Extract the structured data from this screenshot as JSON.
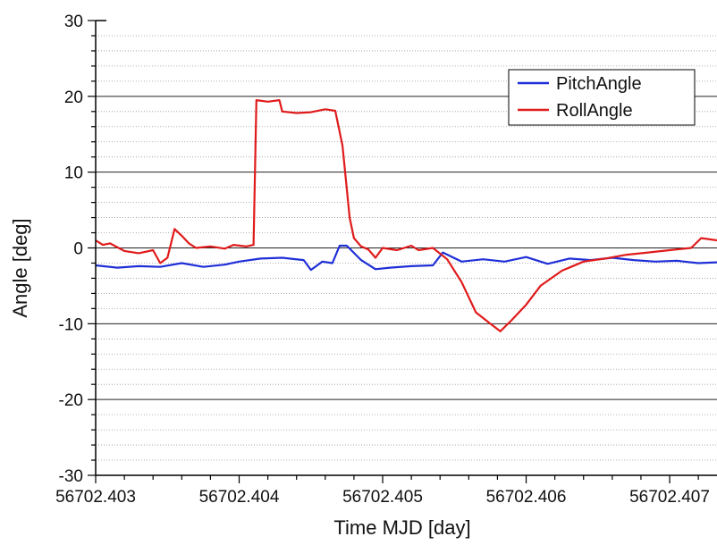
{
  "chart_data": {
    "type": "line",
    "xlabel": "Time MJD [day]",
    "ylabel": "Angle [deg]",
    "xlim": [
      56702.403,
      56702.40733
    ],
    "ylim": [
      -30,
      30
    ],
    "x_ticks": [
      56702.403,
      56702.404,
      56702.405,
      56702.406,
      56702.407
    ],
    "x_tick_labels": [
      "56702.403",
      "56702.404",
      "56702.405",
      "56702.406",
      "56702.407"
    ],
    "y_ticks": [
      -30,
      -20,
      -10,
      0,
      10,
      20,
      30
    ],
    "y_tick_labels": [
      "-30",
      "-20",
      "-10",
      "0",
      "10",
      "20",
      "30"
    ],
    "grid": {
      "major": true,
      "minor": true,
      "minor_step": 2
    },
    "legend": {
      "position": "top-right"
    },
    "series": [
      {
        "name": "PitchAngle",
        "color": "#1f2fd6",
        "points": [
          [
            56702.403,
            -2.3
          ],
          [
            56702.40315,
            -2.6
          ],
          [
            56702.4033,
            -2.4
          ],
          [
            56702.40345,
            -2.5
          ],
          [
            56702.4036,
            -2.0
          ],
          [
            56702.40375,
            -2.5
          ],
          [
            56702.4039,
            -2.2
          ],
          [
            56702.404,
            -1.8
          ],
          [
            56702.40415,
            -1.4
          ],
          [
            56702.4043,
            -1.3
          ],
          [
            56702.40445,
            -1.6
          ],
          [
            56702.4045,
            -2.9
          ],
          [
            56702.40458,
            -1.8
          ],
          [
            56702.40465,
            -2.0
          ],
          [
            56702.4047,
            0.3
          ],
          [
            56702.40475,
            0.3
          ],
          [
            56702.40485,
            -1.6
          ],
          [
            56702.40495,
            -2.8
          ],
          [
            56702.40505,
            -2.6
          ],
          [
            56702.4052,
            -2.4
          ],
          [
            56702.40535,
            -2.3
          ],
          [
            56702.40542,
            -0.6
          ],
          [
            56702.40555,
            -1.8
          ],
          [
            56702.4057,
            -1.5
          ],
          [
            56702.40585,
            -1.8
          ],
          [
            56702.406,
            -1.2
          ],
          [
            56702.40615,
            -2.1
          ],
          [
            56702.4063,
            -1.4
          ],
          [
            56702.40645,
            -1.6
          ],
          [
            56702.4066,
            -1.3
          ],
          [
            56702.40675,
            -1.6
          ],
          [
            56702.4069,
            -1.8
          ],
          [
            56702.40705,
            -1.7
          ],
          [
            56702.4072,
            -2.0
          ],
          [
            56702.40733,
            -1.9
          ]
        ]
      },
      {
        "name": "RollAngle",
        "color": "#e01b1b",
        "points": [
          [
            56702.403,
            1.0
          ],
          [
            56702.40305,
            0.4
          ],
          [
            56702.4031,
            0.6
          ],
          [
            56702.4032,
            -0.4
          ],
          [
            56702.4033,
            -0.7
          ],
          [
            56702.4034,
            -0.3
          ],
          [
            56702.40345,
            -2.0
          ],
          [
            56702.4035,
            -1.3
          ],
          [
            56702.40355,
            2.5
          ],
          [
            56702.4036,
            1.6
          ],
          [
            56702.40365,
            0.6
          ],
          [
            56702.4037,
            0.0
          ],
          [
            56702.4038,
            0.2
          ],
          [
            56702.4039,
            -0.1
          ],
          [
            56702.40396,
            0.4
          ],
          [
            56702.40405,
            0.2
          ],
          [
            56702.4041,
            0.4
          ],
          [
            56702.40412,
            19.5
          ],
          [
            56702.4042,
            19.3
          ],
          [
            56702.40428,
            19.5
          ],
          [
            56702.4043,
            18.0
          ],
          [
            56702.4044,
            17.8
          ],
          [
            56702.4045,
            17.9
          ],
          [
            56702.4046,
            18.3
          ],
          [
            56702.40467,
            18.1
          ],
          [
            56702.40472,
            13.5
          ],
          [
            56702.40477,
            4.0
          ],
          [
            56702.4048,
            1.3
          ],
          [
            56702.40485,
            0.2
          ],
          [
            56702.4049,
            -0.2
          ],
          [
            56702.40495,
            -1.3
          ],
          [
            56702.405,
            0.0
          ],
          [
            56702.4051,
            -0.3
          ],
          [
            56702.4052,
            0.3
          ],
          [
            56702.40525,
            -0.3
          ],
          [
            56702.40535,
            0.0
          ],
          [
            56702.40545,
            -1.5
          ],
          [
            56702.40555,
            -4.5
          ],
          [
            56702.40565,
            -8.5
          ],
          [
            56702.40575,
            -10.0
          ],
          [
            56702.40582,
            -11.0
          ],
          [
            56702.4059,
            -9.5
          ],
          [
            56702.406,
            -7.5
          ],
          [
            56702.4061,
            -5.0
          ],
          [
            56702.40625,
            -3.0
          ],
          [
            56702.4064,
            -1.8
          ],
          [
            56702.40655,
            -1.4
          ],
          [
            56702.4067,
            -0.9
          ],
          [
            56702.40685,
            -0.6
          ],
          [
            56702.407,
            -0.3
          ],
          [
            56702.40715,
            0.0
          ],
          [
            56702.40722,
            1.3
          ],
          [
            56702.40733,
            1.0
          ]
        ]
      }
    ]
  }
}
